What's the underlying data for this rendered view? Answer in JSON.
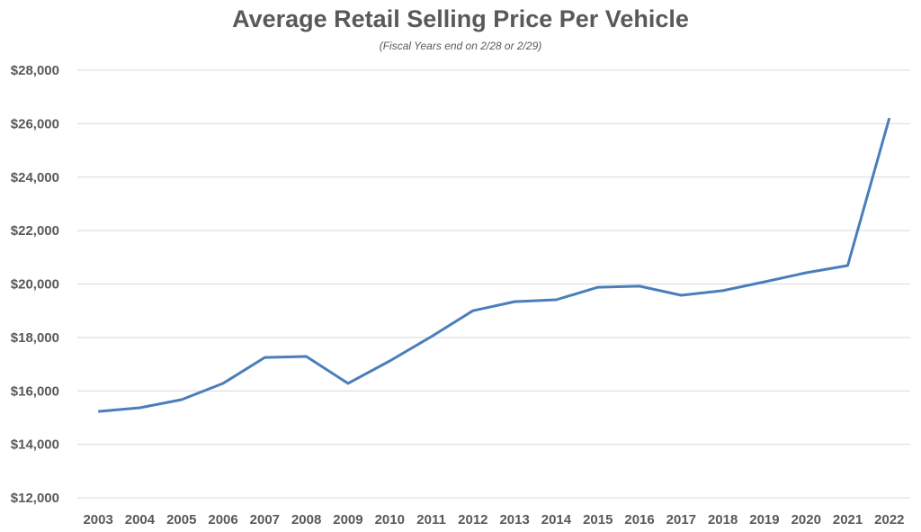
{
  "chart_data": {
    "type": "line",
    "title": "Average Retail Selling Price Per Vehicle",
    "subtitle": "(Fiscal Years end on 2/28 or 2/29)",
    "xlabel": "",
    "ylabel": "",
    "ylim": [
      12000,
      28000
    ],
    "ytick_step": 2000,
    "yticks": [
      "$12,000",
      "$14,000",
      "$16,000",
      "$18,000",
      "$20,000",
      "$22,000",
      "$24,000",
      "$26,000",
      "$28,000"
    ],
    "grid": true,
    "legend": "none",
    "categories": [
      "2003",
      "2004",
      "2005",
      "2006",
      "2007",
      "2008",
      "2009",
      "2010",
      "2011",
      "2012",
      "2013",
      "2014",
      "2015",
      "2016",
      "2017",
      "2018",
      "2019",
      "2020",
      "2021",
      "2022"
    ],
    "series": [
      {
        "name": "Average Retail Selling Price",
        "color": "#4a7ebb",
        "values": [
          15230,
          15370,
          15670,
          16280,
          17250,
          17290,
          16280,
          17120,
          18030,
          19000,
          19340,
          19410,
          19880,
          19920,
          19580,
          19750,
          20080,
          20420,
          20690,
          26210
        ]
      }
    ],
    "gridline_color": "#d9d9d9",
    "text_color": "#595959"
  }
}
